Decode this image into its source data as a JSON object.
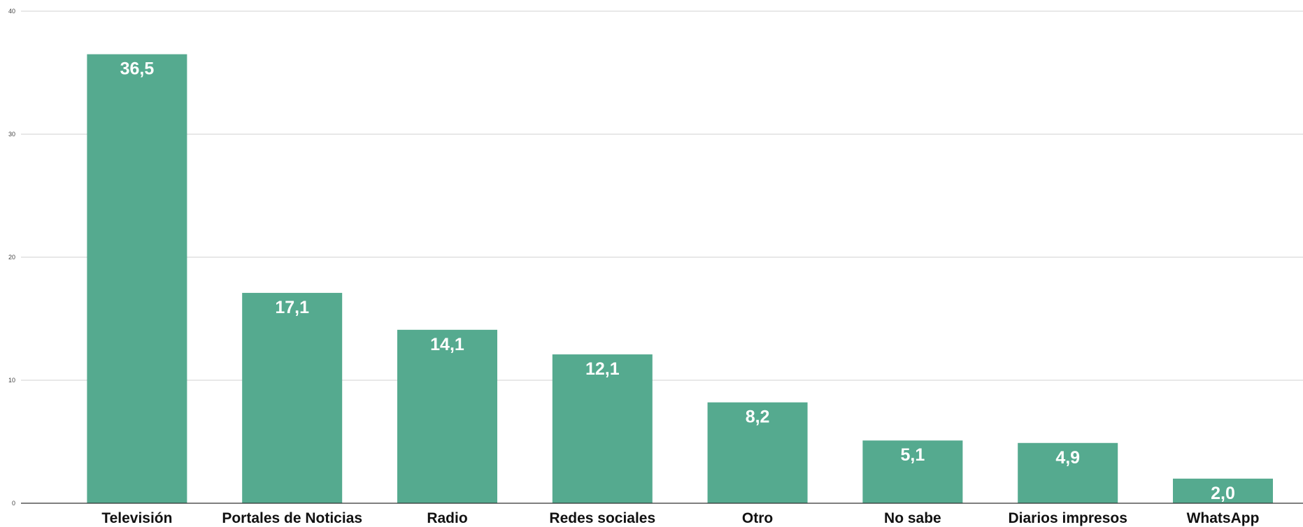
{
  "chart_data": {
    "type": "bar",
    "categories": [
      "Televisión",
      "Portales de Noticias",
      "Radio",
      "Redes sociales",
      "Otro",
      "No sabe",
      "Diarios impresos",
      "WhatsApp"
    ],
    "values": [
      36.5,
      17.1,
      14.1,
      12.1,
      8.2,
      5.1,
      4.9,
      2.0
    ],
    "data_labels": [
      "36,5",
      "17,1",
      "14,1",
      "12,1",
      "8,2",
      "5,1",
      "4,9",
      "2,0"
    ],
    "title": "",
    "xlabel": "",
    "ylabel": "",
    "ylim": [
      0,
      40
    ],
    "yticks": [
      0,
      10,
      20,
      30,
      40
    ],
    "grid": true,
    "bar_color": "#55aa8f"
  }
}
